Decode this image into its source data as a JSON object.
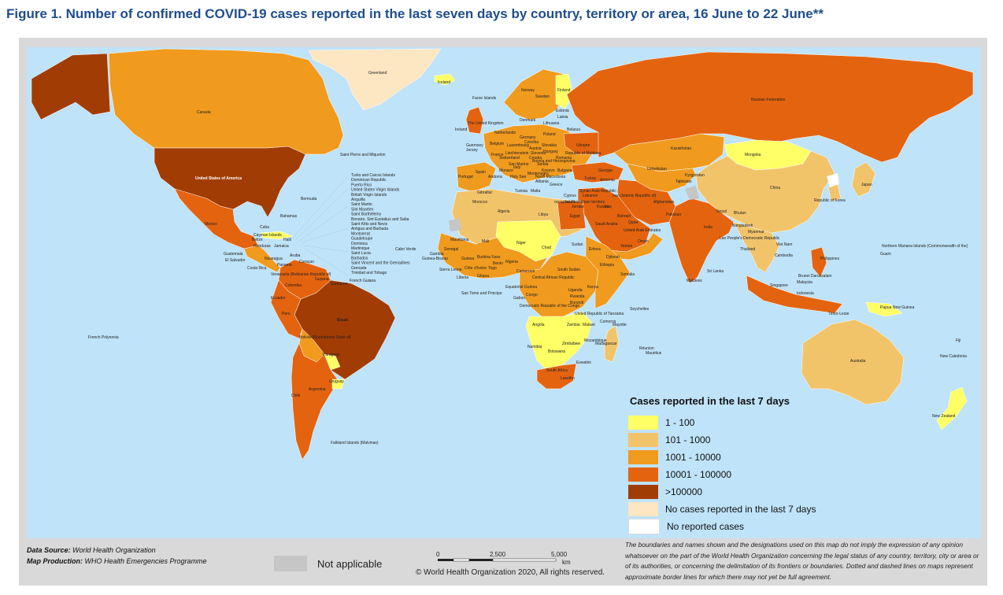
{
  "title": "Figure 1. Number of confirmed COVID-19 cases reported in the last seven days by country, territory or area, 16 June to 22 June**",
  "colors": {
    "ocean": "#bfe3f9",
    "c1": "#ffff66",
    "c2": "#f2c46a",
    "c3": "#f09a1e",
    "c4": "#e4630f",
    "c5": "#a23c05",
    "none7": "#fde6c2",
    "noreport": "#ffffff",
    "na": "#c6c6c6",
    "title": "#1f4e8c"
  },
  "legend": {
    "title": "Cases reported in the last 7 days",
    "items": [
      {
        "label": "1 - 100",
        "color": "#ffff66"
      },
      {
        "label": "101 - 1000",
        "color": "#f2c46a"
      },
      {
        "label": "1001 - 10000",
        "color": "#f09a1e"
      },
      {
        "label": "10001 - 100000",
        "color": "#e4630f"
      },
      {
        "label": ">100000",
        "color": "#a23c05"
      },
      {
        "label": "No cases reported in the last 7 days",
        "color": "#fde6c2"
      },
      {
        "label": "No reported cases",
        "color": "#ffffff"
      }
    ]
  },
  "not_applicable": "Not applicable",
  "footer": {
    "source_label": "Data Source:",
    "source_value": "World Health Organization",
    "production_label": "Map Production:",
    "production_value": "WHO Health Emergencies Programme"
  },
  "scale": {
    "t0": "0",
    "t1": "2,500",
    "t2": "5,000",
    "unit": "km"
  },
  "copyright": "© World Health Organization  2020,  All rights reserved.",
  "disclaimer": "The boundaries and names shown and the designations used on this map do not imply the expression of any opinion whatsoever on the part of the World Health Organization concerning the legal status of any country, territory, city or area or of its authorities, or concerning the delimitation of its frontiers or boundaries. Dotted and dashed lines on maps represent approximate border lines for which there may not yet be full agreement.",
  "labels": {
    "greenland": "Greenland",
    "iceland": "Iceland",
    "canada": "Canada",
    "usa": "United States of America",
    "mexico": "Mexico",
    "russia": "Russian Federation",
    "china": "China",
    "mongolia": "Mongolia",
    "kazakhstan": "Kazakhstan",
    "india": "India",
    "brazil": "Brasil",
    "australia": "Australia",
    "argentina": "Argentina",
    "peru": "Peru",
    "chile": "Chile",
    "bolivia": "Bolivia (Plurinational State of)",
    "colombia": "Colombia",
    "venezuela": "Venezuela (Bolivarian Republic of)",
    "ecuador": "Ecuador",
    "paraguay": "Paraguay",
    "uruguay": "Uruguay",
    "falkland": "Falkland Islands (Malvinas)",
    "french_polynesia": "French Polynesia",
    "algeria": "Algeria",
    "libya": "Libya",
    "egypt": "Egypt",
    "niger": "Niger",
    "mali": "Mali",
    "chad": "Chad",
    "sudan": "Sudan",
    "nigeria": "Nigeria",
    "drc": "Democratic Republic of the Congo",
    "angola": "Angola",
    "south_africa": "South Africa",
    "namibia": "Namibia",
    "botswana": "Botswana",
    "madagascar": "Madagascar",
    "ethiopia": "Ethiopia",
    "kenya": "Kenya",
    "tanzania": "United Republic of Tanzania",
    "saudi": "Saudi Arabia",
    "iran": "Iran (Islamic Republic of)",
    "pakistan": "Pakistan",
    "afghanistan": "Afghanistan",
    "uzbekistan": "Uzbekistan",
    "turkey": "Turkey",
    "ukraine": "Ukraine",
    "poland": "Poland",
    "germany": "Germany",
    "france": "France",
    "spain": "Spain",
    "portugal": "Portugal",
    "uk": "The United Kingdom",
    "ireland": "Ireland",
    "norway": "Norway",
    "sweden": "Sweden",
    "finland": "Finland",
    "italy": "Italy",
    "japan": "Japan",
    "korea": "Republic of Korea",
    "indonesia": "Indonesia",
    "philippines": "Philippines",
    "png": "Papua New Guinea",
    "nz": "New Zealand",
    "new_caledonia": "New Caledonia",
    "fiji": "Fiji",
    "guam": "Guam",
    "nmi": "Northern Mariana Islands (Commonwealth of the)",
    "cabo_verde": "Cabo Verde",
    "sao_tome": "Sao Tome and Principe",
    "seychelles": "Seychelles",
    "mauritius": "Mauritius",
    "reunion": "Réunion",
    "maldives": "Maldives",
    "sri_lanka": "Sri Lanka",
    "thailand": "Thailand",
    "myanmar": "Myanmar",
    "viet_nam": "Viet Nam",
    "malaysia": "Malaysia",
    "singapore": "Singapore",
    "bermuda": "Bermuda",
    "bahamas": "Bahamas",
    "cuba": "Cuba",
    "haiti": "Haiti",
    "jamaica": "Jamaica",
    "spm": "Saint Pierre and Miquelon",
    "faroe": "Faroe Islands",
    "guatemala": "Guatemala",
    "honduras": "Honduras",
    "nicaragua": "Nicaragua",
    "costa_rica": "Costa Rica",
    "panama": "Panama",
    "el_salvador": "El Salvador",
    "belize": "Belize",
    "guyana": "Guyana",
    "suriname": "Suriname",
    "french_guiana": "French Guiana",
    "morocco": "Morocco",
    "mauritania": "Mauritania",
    "senegal": "Senegal",
    "guinea": "Guinea",
    "ghana": "Ghana",
    "cameroon": "Cameroon",
    "car": "Central African Republic",
    "south_sudan": "South Sudan",
    "somalia": "Somalia",
    "yemen": "Yemen",
    "oman": "Oman",
    "uae": "United Arab Emirates",
    "iraq": "Iraq",
    "syria": "Syrian Arab Republic",
    "nepal": "Nepal",
    "bangladesh": "Bangladesh",
    "bhutan": "Bhutan",
    "lao": "Lao People's Democratic Republic",
    "cambodia": "Cambodia",
    "zambia": "Zambia",
    "zimbabwe": "Zimbabwe",
    "mozambique": "Mozambique",
    "malawi": "Malawi",
    "gabon": "Gabon",
    "congo": "Congo",
    "uganda": "Uganda",
    "eswatini": "Eswatini",
    "lesotho": "Lesotho",
    "comoros": "Comoros",
    "mayotte": "Mayotte",
    "djibouti": "Djibouti",
    "eritrea": "Eritrea",
    "timor": "Timor-Leste",
    "brunei": "Brunei Darussalam",
    "kyrgyzstan": "Kyrgyzstan",
    "tajikistan": "Tajikistan",
    "georgia": "Georgia",
    "armenia": "Armenia",
    "belarus": "Belarus",
    "estonia": "Estonia",
    "latvia": "Latvia",
    "lithuania": "Lithuania",
    "denmark": "Denmark",
    "netherlands": "Netherlands",
    "belgium": "Belgium",
    "switzerland": "Switzerland",
    "austria": "Austria",
    "hungary": "Hungary",
    "romania": "Romania",
    "bulgaria": "Bulgaria",
    "greece": "Greece",
    "malta": "Malta",
    "tunisia": "Tunisia",
    "cyprus": "Cyprus",
    "israel": "Israel",
    "jordan": "Jordan",
    "kuwait": "Kuwait",
    "qatar": "Qatar",
    "bahrain": "Bahrain",
    "lebanon": "Lebanon",
    "sierra_leone": "Sierra Leone",
    "liberia": "Liberia",
    "cote_divoire": "Côte d'Ivoire",
    "burkina": "Burkina Faso",
    "benin": "Benin",
    "togo": "Togo",
    "gambia": "Gambia",
    "guinea_bissau": "Guinea-Bissau",
    "eq_guinea": "Equatorial Guinea",
    "rwanda": "Rwanda",
    "burundi": "Burundi",
    "guernsey": "Guernsey",
    "jersey": "Jersey",
    "gibraltar": "Gibraltar",
    "andorra": "Andorra",
    "monaco": "Monaco",
    "san_marino": "San Marino",
    "holy_see": "Holy See",
    "moldova": "Republic of Moldova",
    "luxembourg": "Luxembourg",
    "czechia": "Czechia",
    "slovakia": "Slovakia",
    "slovenia": "Slovenia",
    "croatia": "Croatia",
    "serbia": "Serbia",
    "bih": "Bosnia and Herzegovina",
    "montenegro": "Montenegro",
    "north_macedonia": "North Macedonia",
    "albania": "Albania",
    "kosovo": "Kosovo",
    "liechtenstein": "Liechtenstein",
    "palestine": "occupied Palestinian territory"
  },
  "caribbean_list": [
    "Turks and Caicos Islands",
    "Dominican Republic",
    "Puerto Rico",
    "United States Virgin Islands",
    "British Virgin Islands",
    "Anguilla",
    "Saint Martin",
    "Sint Maarten",
    "Saint Barthélemy",
    "Bonaire, Sint Eustatius and Saba",
    "Saint Kitts and Nevis",
    "Antigua and Barbuda",
    "Montserrat",
    "Guadeloupe",
    "Dominica",
    "Martinique",
    "Saint Lucia",
    "Barbados",
    "Saint Vincent and the Grenadines",
    "Grenada",
    "Trinidad and Tobago"
  ],
  "small_labels": [
    "Cayman Islands",
    "Aruba",
    "Curaçao"
  ]
}
